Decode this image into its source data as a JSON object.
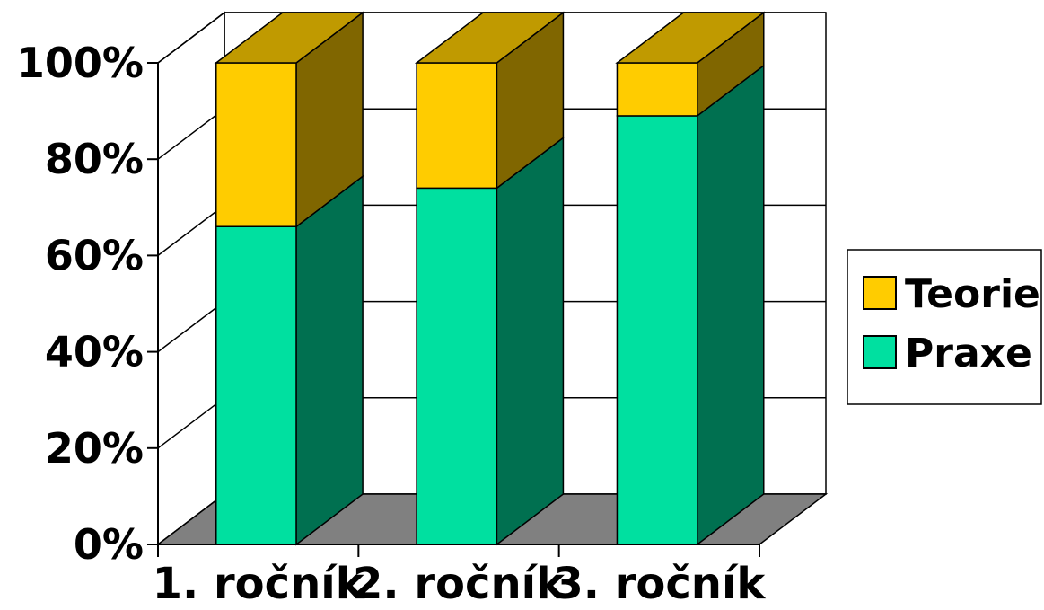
{
  "chart_data": {
    "type": "bar",
    "stacked": true,
    "percent_stacked": true,
    "three_d": true,
    "categories": [
      "1. ročník",
      "2. ročník",
      "3. ročník"
    ],
    "series": [
      {
        "name": "Praxe",
        "values": [
          66,
          74,
          89
        ],
        "color": "#00e0a0",
        "side_color": "#007050",
        "top_color": "#00b080"
      },
      {
        "name": "Teorie",
        "values": [
          34,
          26,
          11
        ],
        "color": "#ffcc00",
        "side_color": "#806600",
        "top_color": "#c09a00"
      }
    ],
    "y_ticks": [
      "0%",
      "20%",
      "40%",
      "60%",
      "80%",
      "100%"
    ],
    "ylim": [
      0,
      100
    ],
    "grid": true,
    "legend": "right",
    "legend_order": [
      "Teorie",
      "Praxe"
    ],
    "title": "",
    "xlabel": "",
    "ylabel": ""
  }
}
